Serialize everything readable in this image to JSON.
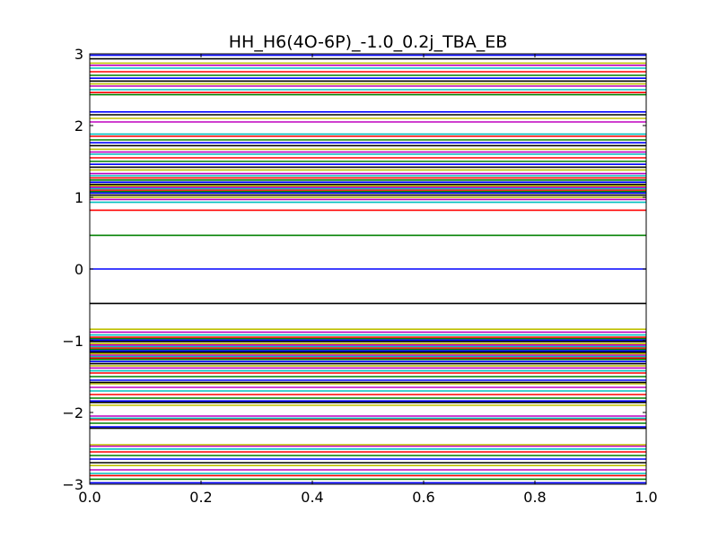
{
  "chart_data": {
    "type": "line",
    "title": "HH_H6(4O-6P)_-1.0_0.2j_TBA_EB",
    "xlabel": "",
    "ylabel": "",
    "xlim": [
      0.0,
      1.0
    ],
    "ylim": [
      -3,
      3
    ],
    "x_ticks": [
      "0.0",
      "0.2",
      "0.4",
      "0.6",
      "0.8",
      "1.0"
    ],
    "y_ticks": [
      "−3",
      "−2",
      "−1",
      "0",
      "1",
      "2",
      "3"
    ],
    "grid": false,
    "legend": "none",
    "palette": [
      "#0000ff",
      "#008000",
      "#ff0000",
      "#00bfbf",
      "#bf00bf",
      "#bfbf00",
      "#000000"
    ],
    "levels": [
      -2.98,
      -2.93,
      -2.88,
      -2.85,
      -2.8,
      -2.74,
      -2.7,
      -2.65,
      -2.6,
      -2.55,
      -2.51,
      -2.47,
      -2.45,
      -2.22,
      -2.2,
      -2.15,
      -2.1,
      -2.08,
      -2.05,
      -1.9,
      -1.86,
      -1.84,
      -1.8,
      -1.75,
      -1.7,
      -1.65,
      -1.6,
      -1.58,
      -1.55,
      -1.5,
      -1.45,
      -1.42,
      -1.38,
      -1.35,
      -1.32,
      -1.29,
      -1.26,
      -1.24,
      -1.22,
      -1.2,
      -1.18,
      -1.16,
      -1.14,
      -1.12,
      -1.1,
      -1.08,
      -1.06,
      -1.04,
      -1.01,
      -0.99,
      -0.97,
      -0.95,
      -0.92,
      -0.88,
      -0.84,
      -0.48,
      0.0,
      0.47,
      0.82,
      0.93,
      0.97,
      1.0,
      1.03,
      1.06,
      1.08,
      1.1,
      1.12,
      1.14,
      1.16,
      1.18,
      1.21,
      1.24,
      1.27,
      1.3,
      1.33,
      1.38,
      1.42,
      1.46,
      1.5,
      1.55,
      1.6,
      1.63,
      1.67,
      1.72,
      1.76,
      1.8,
      1.85,
      1.88,
      2.05,
      2.1,
      2.15,
      2.19,
      2.43,
      2.46,
      2.5,
      2.55,
      2.58,
      2.62,
      2.66,
      2.7,
      2.75,
      2.8,
      2.84,
      2.87,
      2.93,
      2.98
    ]
  }
}
